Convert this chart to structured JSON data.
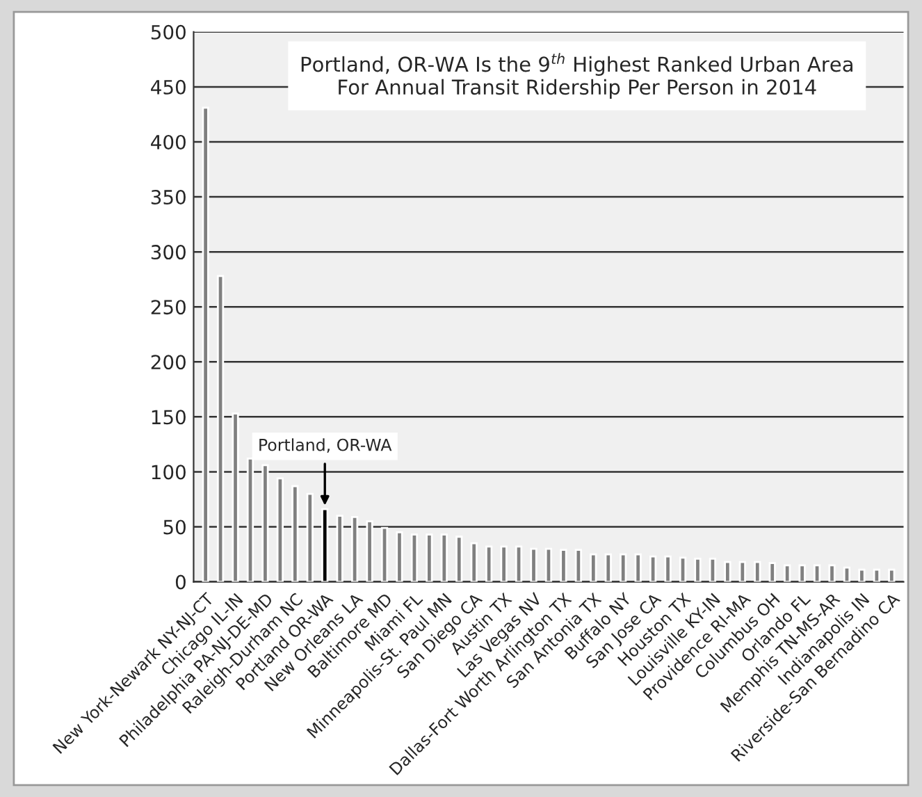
{
  "chart_data": {
    "type": "bar",
    "title": "Portland, OR-WA Is the 9$^{th}$ Highest Ranked Urban Area\nFor Annual Transit Ridership Per Person in 2014",
    "categories": [
      "New York-Newark NY-NJ-CT",
      null,
      "Chicago IL-IN",
      null,
      "Philadelphia PA-NJ-DE-MD",
      null,
      "Raleigh-Durham NC",
      null,
      "Portland OR-WA",
      null,
      "New Orleans LA",
      null,
      "Baltimore MD",
      null,
      "Miami FL",
      null,
      "Minneapolis-St. Paul MN",
      null,
      "San Diego CA",
      null,
      "Austin TX",
      null,
      "Las Vegas NV",
      null,
      "Dallas-Fort Worth Arlington TX",
      null,
      "San Antonia TX",
      null,
      "Buffalo NY",
      null,
      "San Jose CA",
      null,
      "Houston TX",
      null,
      "Louisville KY-IN",
      null,
      "Providence RI-MA",
      null,
      "Columbus OH",
      null,
      "Orlando FL",
      null,
      "Memphis TN-MS-AR",
      null,
      "Indianapolis IN",
      null,
      "Riverside-San Bernadino CA"
    ],
    "values": [
      431,
      278,
      153,
      112,
      106,
      94,
      87,
      80,
      66,
      60,
      59,
      55,
      49,
      45,
      43,
      43,
      43,
      41,
      35,
      32,
      32,
      32,
      30,
      30,
      29,
      29,
      25,
      25,
      25,
      25,
      23,
      23,
      22,
      21,
      21,
      18,
      18,
      18,
      17,
      15,
      15,
      15,
      15,
      13,
      11,
      11,
      11
    ],
    "colors": [
      "#808080",
      "#808080",
      "#808080",
      "#808080",
      "#808080",
      "#808080",
      "#808080",
      "#808080",
      "#000000",
      "#808080",
      "#808080",
      "#808080",
      "#808080",
      "#808080",
      "#808080",
      "#808080",
      "#808080",
      "#808080",
      "#808080",
      "#808080",
      "#808080",
      "#808080",
      "#808080",
      "#808080",
      "#808080",
      "#808080",
      "#808080",
      "#808080",
      "#808080",
      "#808080",
      "#808080",
      "#808080",
      "#808080",
      "#808080",
      "#808080",
      "#808080",
      "#808080",
      "#808080",
      "#808080",
      "#808080",
      "#808080",
      "#808080",
      "#808080",
      "#808080",
      "#808080",
      "#808080",
      "#808080"
    ],
    "ylim": [
      0,
      500
    ],
    "yticks": [
      0,
      50,
      100,
      150,
      200,
      250,
      300,
      350,
      400,
      450,
      500
    ],
    "grid": "y",
    "annotations": [
      {
        "text": "Portland, OR-WA",
        "x": "Portland OR-WA",
        "y": 66
      }
    ]
  }
}
